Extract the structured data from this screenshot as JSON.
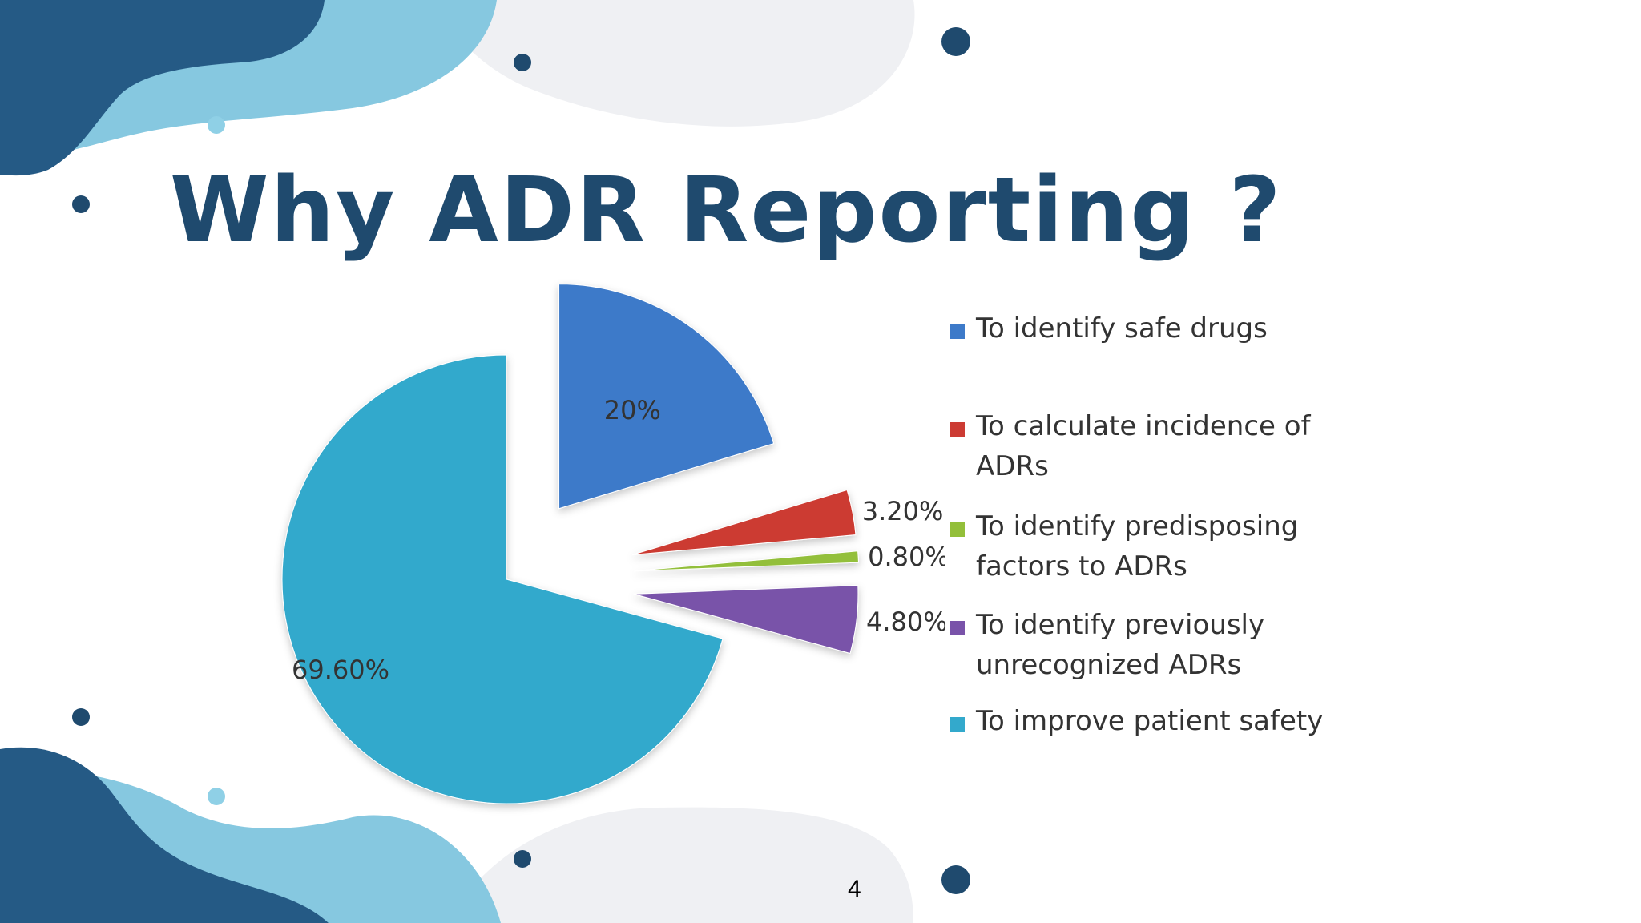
{
  "slide": {
    "title": "Why ADR Reporting ?",
    "page_number": "4"
  },
  "colors": {
    "title": "#1f4a6e",
    "dark_blue": "#255a85",
    "light_blue": "#86c8e0",
    "light_gray": "#eff0f3",
    "dot_dark": "#1f4a6e",
    "dot_light": "#8fd0e6"
  },
  "chart_data": {
    "type": "pie",
    "title": "",
    "series": [
      {
        "name": "To identify safe drugs",
        "value": 20,
        "label": "20%",
        "color": "#3d7ac9",
        "label_side": "inside"
      },
      {
        "name": "To calculate incidence of ADRs",
        "value": 3.2,
        "label": "3.20%",
        "color": "#cc3b33",
        "label_side": "outside"
      },
      {
        "name": "To identify predisposing factors to ADRs",
        "value": 0.8,
        "label": "0.80%",
        "color": "#93bf3a",
        "label_side": "outside"
      },
      {
        "name": "To identify previously unrecognized ADRs",
        "value": 4.8,
        "label": "4.80%",
        "color": "#7953a9",
        "label_side": "outside"
      },
      {
        "name": "To improve patient safety",
        "value": 69.6,
        "label": "69.60%",
        "color": "#33a9cc",
        "label_side": "inside"
      }
    ],
    "legend": "right",
    "exploded": true
  }
}
